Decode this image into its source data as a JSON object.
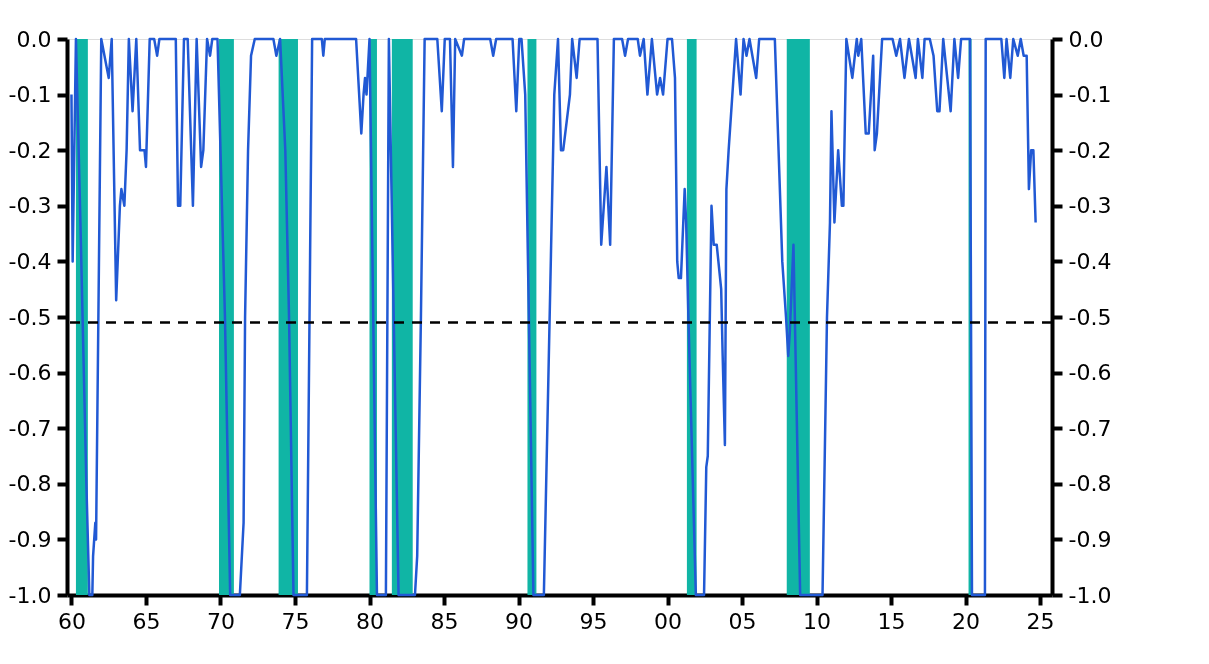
{
  "chart_data": {
    "type": "line",
    "xlim": [
      1959.7,
      2025.8
    ],
    "xticks": [
      {
        "value": 1960,
        "label": "60"
      },
      {
        "value": 1965,
        "label": "65"
      },
      {
        "value": 1970,
        "label": "70"
      },
      {
        "value": 1975,
        "label": "75"
      },
      {
        "value": 1980,
        "label": "80"
      },
      {
        "value": 1985,
        "label": "85"
      },
      {
        "value": 1990,
        "label": "90"
      },
      {
        "value": 1995,
        "label": "95"
      },
      {
        "value": 2000,
        "label": "00"
      },
      {
        "value": 2005,
        "label": "05"
      },
      {
        "value": 2010,
        "label": "10"
      },
      {
        "value": 2015,
        "label": "15"
      },
      {
        "value": 2020,
        "label": "20"
      },
      {
        "value": 2025,
        "label": "25"
      }
    ],
    "ylim": [
      -1.0,
      0.0
    ],
    "yticks": [
      {
        "value": 0,
        "label": "0.0"
      },
      {
        "value": -0.1,
        "label": "-0.1"
      },
      {
        "value": -0.2,
        "label": "-0.2"
      },
      {
        "value": -0.3,
        "label": "-0.3"
      },
      {
        "value": -0.4,
        "label": "-0.4"
      },
      {
        "value": -0.5,
        "label": "-0.5"
      },
      {
        "value": -0.6,
        "label": "-0.6"
      },
      {
        "value": -0.7,
        "label": "-0.7"
      },
      {
        "value": -0.8,
        "label": "-0.8"
      },
      {
        "value": -0.9,
        "label": "-0.9"
      },
      {
        "value": -1.0,
        "label": "-1.0"
      }
    ],
    "y2lim": [
      -1.0,
      0.0
    ],
    "y2ticks": [
      {
        "value": 0,
        "label": "0.0"
      },
      {
        "value": -0.1,
        "label": "-0.1"
      },
      {
        "value": -0.2,
        "label": "-0.2"
      },
      {
        "value": -0.3,
        "label": "-0.3"
      },
      {
        "value": -0.4,
        "label": "-0.4"
      },
      {
        "value": -0.5,
        "label": "-0.5"
      },
      {
        "value": -0.6,
        "label": "-0.6"
      },
      {
        "value": -0.7,
        "label": "-0.7"
      },
      {
        "value": -0.8,
        "label": "-0.8"
      },
      {
        "value": -0.9,
        "label": "-0.9"
      },
      {
        "value": -1.0,
        "label": "-1.0"
      }
    ],
    "grid": false,
    "bands": [
      {
        "axis": "x",
        "from": 1960.3,
        "to": 1961.1,
        "color": "#10b5a5"
      },
      {
        "axis": "x",
        "from": 1969.9,
        "to": 1970.9,
        "color": "#10b5a5"
      },
      {
        "axis": "x",
        "from": 1973.9,
        "to": 1975.2,
        "color": "#10b5a5"
      },
      {
        "axis": "x",
        "from": 1980.0,
        "to": 1980.5,
        "color": "#10b5a5"
      },
      {
        "axis": "x",
        "from": 1981.5,
        "to": 1982.9,
        "color": "#10b5a5"
      },
      {
        "axis": "x",
        "from": 1990.6,
        "to": 1991.2,
        "color": "#10b5a5"
      },
      {
        "axis": "x",
        "from": 2001.3,
        "to": 2001.95,
        "color": "#10b5a5"
      },
      {
        "axis": "x",
        "from": 2008.0,
        "to": 2009.55,
        "color": "#10b5a5"
      },
      {
        "axis": "x",
        "from": 2020.2,
        "to": 2020.4,
        "color": "#10b5a5"
      }
    ],
    "ref_lines": [
      {
        "axis": "y",
        "value": -0.51,
        "color": "#000000",
        "line_style": "dashed"
      }
    ],
    "series": [
      {
        "color": "#2159d4",
        "x": [
          1960.0,
          1960.08,
          1960.3,
          1960.6,
          1961.0,
          1961.2,
          1961.4,
          1961.45,
          1961.6,
          1961.65,
          1962.0,
          1962.5,
          1962.7,
          1963.0,
          1963.25,
          1963.35,
          1963.55,
          1963.7,
          1963.85,
          1964.1,
          1964.35,
          1964.6,
          1964.9,
          1965.0,
          1965.25,
          1965.55,
          1965.75,
          1965.9,
          1967.0,
          1967.15,
          1967.3,
          1967.55,
          1967.8,
          1968.15,
          1968.4,
          1968.7,
          1968.85,
          1969.1,
          1969.3,
          1969.45,
          1969.8,
          1970.3,
          1970.65,
          1971.3,
          1971.55,
          1971.65,
          1971.85,
          1972.05,
          1972.3,
          1973.55,
          1973.75,
          1974.0,
          1974.35,
          1974.6,
          1974.9,
          1975.8,
          1976.15,
          1976.8,
          1976.9,
          1977.0,
          1979.1,
          1979.45,
          1979.6,
          1979.7,
          1979.8,
          1980.0,
          1980.5,
          1981.1,
          1981.3,
          1981.95,
          1983.05,
          1983.2,
          1983.45,
          1983.7,
          1984.55,
          1984.85,
          1985.05,
          1985.4,
          1985.6,
          1985.75,
          1986.2,
          1986.35,
          1988.1,
          1988.3,
          1988.5,
          1989.6,
          1989.85,
          1990.05,
          1990.2,
          1990.45,
          1991.0,
          1991.7,
          1992.4,
          1992.65,
          1992.85,
          1993.0,
          1993.45,
          1993.6,
          1993.9,
          1994.1,
          1995.3,
          1995.55,
          1995.9,
          1996.15,
          1996.4,
          1996.95,
          1997.15,
          1997.35,
          1998.0,
          1998.15,
          1998.4,
          1998.65,
          1998.95,
          1999.3,
          1999.5,
          1999.7,
          2000.0,
          2000.3,
          2000.5,
          2000.65,
          2000.75,
          2000.9,
          2001.15,
          2001.25,
          2001.4,
          2001.9,
          2002.45,
          2002.6,
          2002.7,
          2002.95,
          2003.1,
          2003.3,
          2003.6,
          2003.7,
          2003.85,
          2003.95,
          2004.1,
          2004.35,
          2004.6,
          2004.9,
          2005.1,
          2005.3,
          2005.5,
          2005.95,
          2006.15,
          2007.2,
          2007.45,
          2007.7,
          2007.95,
          2008.1,
          2008.2,
          2008.45,
          2008.9,
          2010.4,
          2010.7,
          2010.9,
          2011.0,
          2011.2,
          2011.45,
          2011.7,
          2011.8,
          2012.0,
          2012.4,
          2012.7,
          2012.8,
          2013.0,
          2013.3,
          2013.5,
          2013.8,
          2013.9,
          2014.05,
          2014.4,
          2015.1,
          2015.35,
          2015.6,
          2015.9,
          2016.2,
          2016.65,
          2016.8,
          2017.1,
          2017.25,
          2017.6,
          2017.85,
          2018.1,
          2018.25,
          2018.5,
          2019.0,
          2019.25,
          2019.5,
          2019.7,
          2020.3,
          2020.43,
          2021.3,
          2021.35,
          2022.4,
          2022.6,
          2022.75,
          2023.0,
          2023.2,
          2023.5,
          2023.7,
          2023.9,
          2024.1,
          2024.25,
          2024.4,
          2024.55,
          2024.7
        ],
        "values": [
          -0.1,
          -0.4,
          0,
          -0.33,
          -0.8,
          -1.0,
          -1.0,
          -0.93,
          -0.87,
          -0.9,
          0,
          -0.07,
          0,
          -0.47,
          -0.3,
          -0.27,
          -0.3,
          -0.2,
          0,
          -0.13,
          0,
          -0.2,
          -0.2,
          -0.23,
          0,
          0,
          -0.03,
          0,
          0,
          -0.3,
          -0.3,
          0,
          0,
          -0.3,
          0,
          -0.23,
          -0.2,
          0,
          -0.03,
          0,
          0,
          -0.5,
          -1.0,
          -1.0,
          -0.87,
          -0.5,
          -0.2,
          -0.03,
          0,
          0,
          -0.03,
          0,
          -0.2,
          -0.5,
          -1.0,
          -1.0,
          0,
          0,
          -0.03,
          0,
          0,
          -0.17,
          -0.1,
          -0.07,
          -0.1,
          0,
          -1.0,
          -1.0,
          0,
          -1.0,
          -1.0,
          -0.93,
          -0.5,
          0,
          0,
          -0.13,
          0,
          0,
          -0.23,
          0,
          -0.03,
          0,
          0,
          -0.03,
          0,
          0,
          -0.13,
          0,
          0,
          -0.1,
          -1.0,
          -1.0,
          -0.1,
          0,
          -0.2,
          -0.2,
          -0.1,
          0,
          -0.07,
          0,
          0,
          -0.37,
          -0.23,
          -0.37,
          0,
          0,
          -0.03,
          0,
          0,
          -0.03,
          0,
          -0.1,
          0,
          -0.1,
          -0.07,
          -0.1,
          0,
          0,
          -0.07,
          -0.4,
          -0.43,
          -0.43,
          -0.27,
          -0.33,
          -0.5,
          -1.0,
          -1.0,
          -0.77,
          -0.75,
          -0.3,
          -0.37,
          -0.37,
          -0.45,
          -0.57,
          -0.73,
          -0.27,
          -0.2,
          -0.1,
          0,
          -0.1,
          0,
          -0.03,
          0,
          -0.07,
          0,
          0,
          -0.2,
          -0.4,
          -0.5,
          -0.57,
          -0.53,
          -0.37,
          -1.0,
          -1.0,
          -0.5,
          -0.33,
          -0.13,
          -0.33,
          -0.2,
          -0.3,
          -0.3,
          0,
          -0.07,
          0,
          -0.03,
          0,
          -0.17,
          -0.17,
          -0.03,
          -0.2,
          -0.17,
          0,
          0,
          -0.03,
          0,
          -0.07,
          0,
          -0.07,
          0,
          -0.07,
          0,
          0,
          -0.03,
          -0.13,
          -0.13,
          0,
          -0.13,
          0,
          -0.07,
          0,
          0,
          -1.0,
          -1.0,
          0,
          0,
          -0.07,
          0,
          -0.07,
          0,
          -0.03,
          0,
          -0.03,
          -0.03,
          -0.27,
          -0.2,
          -0.2,
          -0.33
        ]
      }
    ]
  }
}
